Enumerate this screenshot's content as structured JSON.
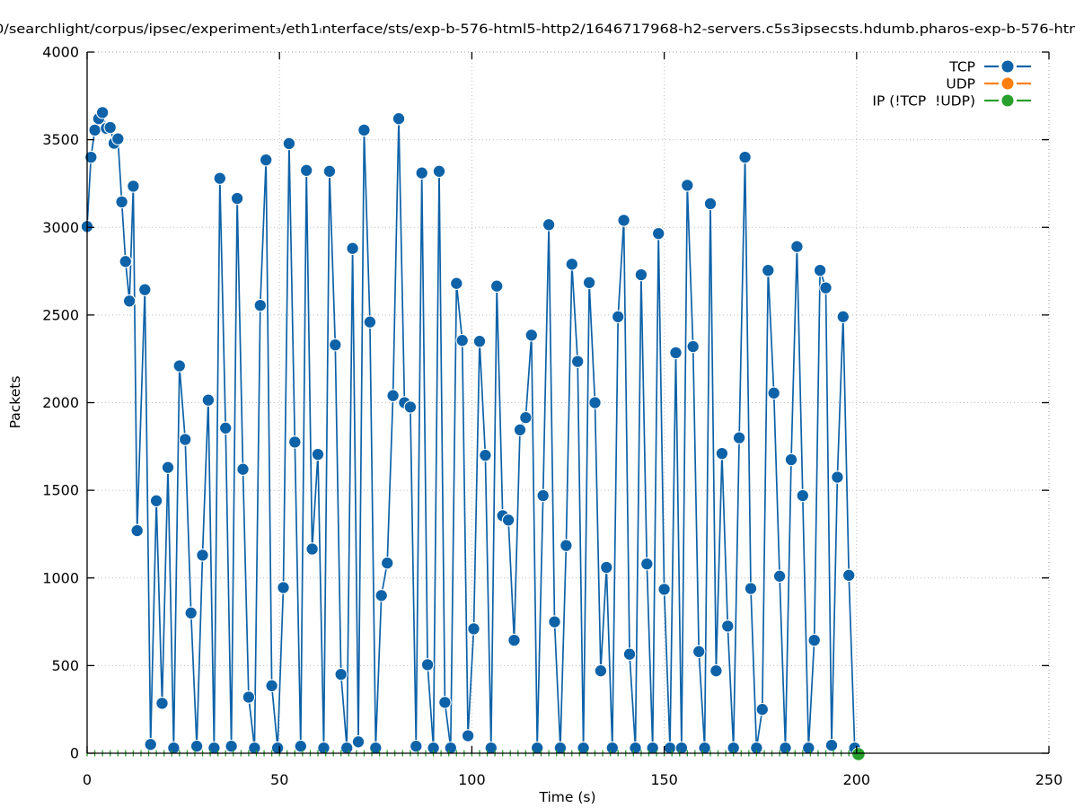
{
  "title": "0/searchlight/corpus/ipsec/experiment₃/eth1ᵢnterface/sts/exp-b-576-html5-http2/1646717968-h2-servers.c5s3ipsecsts.hdumb.pharos-exp-b-576-htm",
  "chart_data": {
    "type": "line",
    "title": "0/searchlight/corpus/ipsec/experiment₃/eth1ᵢnterface/sts/exp-b-576-html5-http2/1646717968-h2-servers.c5s3ipsecsts.hdumb.pharos-exp-b-576-htm",
    "xlabel": "Time (s)",
    "ylabel": "Packets",
    "xlim": [
      0,
      250
    ],
    "ylim": [
      0,
      4000
    ],
    "xticks": [
      0,
      50,
      100,
      150,
      200,
      250
    ],
    "yticks": [
      0,
      500,
      1000,
      1500,
      2000,
      2500,
      3000,
      3500,
      4000
    ],
    "grid": "dotted",
    "legend_position": "top-right",
    "colors": {
      "tcp": "#0d62a8",
      "udp": "#ff7f0e",
      "ip_other": "#28a02c",
      "grid": "#bbbbbb",
      "border_dotted": "#9a9a9a",
      "axis": "#000000"
    },
    "series": [
      {
        "name": "TCP",
        "color": "#0d62a8",
        "marker": "filled-circle",
        "points": [
          [
            0,
            3005
          ],
          [
            1,
            3400
          ],
          [
            2,
            3555
          ],
          [
            3,
            3620
          ],
          [
            4,
            3655
          ],
          [
            5,
            3565
          ],
          [
            6,
            3570
          ],
          [
            7,
            3480
          ],
          [
            8,
            3505
          ],
          [
            9,
            3145
          ],
          [
            10,
            2805
          ],
          [
            11,
            2580
          ],
          [
            12,
            3235
          ],
          [
            13,
            1270
          ],
          [
            15,
            2645
          ],
          [
            16.5,
            50
          ],
          [
            18,
            1440
          ],
          [
            19.5,
            285
          ],
          [
            21,
            1630
          ],
          [
            22.5,
            30
          ],
          [
            24,
            2210
          ],
          [
            25.5,
            1790
          ],
          [
            27,
            800
          ],
          [
            28.5,
            40
          ],
          [
            30,
            1130
          ],
          [
            31.5,
            2015
          ],
          [
            33,
            30
          ],
          [
            34.5,
            3280
          ],
          [
            36,
            1855
          ],
          [
            37.5,
            40
          ],
          [
            39,
            3165
          ],
          [
            40.5,
            1620
          ],
          [
            42,
            320
          ],
          [
            43.5,
            30
          ],
          [
            45,
            2555
          ],
          [
            46.5,
            3385
          ],
          [
            48,
            385
          ],
          [
            49.5,
            30
          ],
          [
            51,
            945
          ],
          [
            52.5,
            3478
          ],
          [
            54,
            1775
          ],
          [
            55.5,
            40
          ],
          [
            57,
            3325
          ],
          [
            58.5,
            1165
          ],
          [
            60,
            1705
          ],
          [
            61.5,
            30
          ],
          [
            63,
            3320
          ],
          [
            64.5,
            2330
          ],
          [
            66,
            450
          ],
          [
            67.5,
            30
          ],
          [
            69,
            2880
          ],
          [
            70.5,
            65
          ],
          [
            72,
            3555
          ],
          [
            73.5,
            2460
          ],
          [
            75,
            30
          ],
          [
            76.5,
            900
          ],
          [
            78,
            1085
          ],
          [
            79.5,
            2040
          ],
          [
            81,
            3620
          ],
          [
            82.5,
            2000
          ],
          [
            84,
            1975
          ],
          [
            85.5,
            40
          ],
          [
            87,
            3310
          ],
          [
            88.5,
            505
          ],
          [
            90,
            30
          ],
          [
            91.5,
            3320
          ],
          [
            93,
            290
          ],
          [
            94.5,
            30
          ],
          [
            96,
            2680
          ],
          [
            97.5,
            2355
          ],
          [
            99,
            100
          ],
          [
            100.5,
            710
          ],
          [
            102,
            2350
          ],
          [
            103.5,
            1700
          ],
          [
            105,
            30
          ],
          [
            106.5,
            2665
          ],
          [
            108,
            1355
          ],
          [
            109.5,
            1330
          ],
          [
            111,
            645
          ],
          [
            112.5,
            1845
          ],
          [
            114,
            1915
          ],
          [
            115.5,
            2385
          ],
          [
            117,
            30
          ],
          [
            118.5,
            1470
          ],
          [
            120,
            3015
          ],
          [
            121.5,
            750
          ],
          [
            123,
            30
          ],
          [
            124.5,
            1185
          ],
          [
            126,
            2790
          ],
          [
            127.5,
            2235
          ],
          [
            129,
            30
          ],
          [
            130.5,
            2685
          ],
          [
            132,
            2000
          ],
          [
            133.5,
            470
          ],
          [
            135,
            1060
          ],
          [
            136.5,
            30
          ],
          [
            138,
            2490
          ],
          [
            139.5,
            3040
          ],
          [
            141,
            565
          ],
          [
            142.5,
            30
          ],
          [
            144,
            2730
          ],
          [
            145.5,
            1080
          ],
          [
            147,
            30
          ],
          [
            148.5,
            2965
          ],
          [
            150,
            935
          ],
          [
            151.5,
            30
          ],
          [
            153,
            2285
          ],
          [
            154.5,
            30
          ],
          [
            156,
            3240
          ],
          [
            157.5,
            2320
          ],
          [
            159,
            580
          ],
          [
            160.5,
            30
          ],
          [
            162,
            3135
          ],
          [
            163.5,
            470
          ],
          [
            165,
            1710
          ],
          [
            166.5,
            725
          ],
          [
            168,
            30
          ],
          [
            169.5,
            1800
          ],
          [
            171,
            3400
          ],
          [
            172.5,
            940
          ],
          [
            174,
            30
          ],
          [
            175.5,
            250
          ],
          [
            177,
            2755
          ],
          [
            178.5,
            2055
          ],
          [
            180,
            1010
          ],
          [
            181.5,
            30
          ],
          [
            183,
            1675
          ],
          [
            184.5,
            2890
          ],
          [
            186,
            1470
          ],
          [
            187.5,
            30
          ],
          [
            189,
            645
          ],
          [
            190.5,
            2755
          ],
          [
            192,
            2655
          ],
          [
            193.5,
            45
          ],
          [
            195,
            1575
          ],
          [
            196.5,
            2490
          ],
          [
            198,
            1015
          ],
          [
            199.5,
            30
          ]
        ]
      },
      {
        "name": "UDP",
        "color": "#ff7f0e",
        "marker": "filled-circle",
        "points": []
      },
      {
        "name": "IP (!TCP  !UDP)",
        "color": "#28a02c",
        "marker": "filled-circle",
        "points": [
          [
            200.5,
            0
          ]
        ],
        "baseline_marks": {
          "t_start": 0,
          "t_end": 200,
          "t_step": 2,
          "value": 0
        }
      }
    ]
  },
  "legend": {
    "items": [
      {
        "label": "TCP",
        "color": "#0d62a8"
      },
      {
        "label": "UDP",
        "color": "#ff7f0e"
      },
      {
        "label": "IP (!TCP  !UDP)",
        "color": "#28a02c"
      }
    ]
  }
}
